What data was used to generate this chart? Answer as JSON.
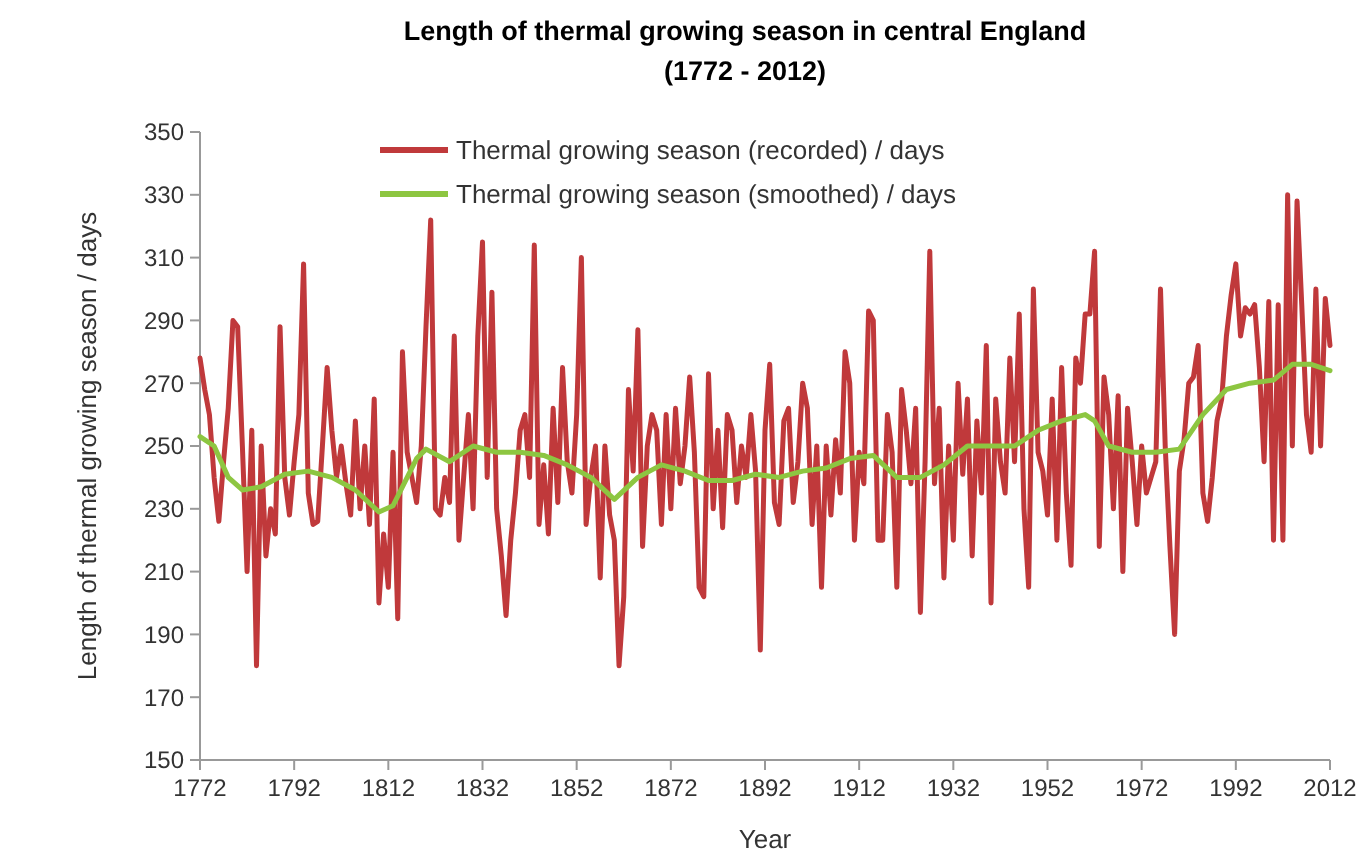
{
  "chart_data": {
    "type": "line",
    "title": "Length of thermal growing season in central England",
    "subtitle": "(1772 - 2012)",
    "xlabel": "Year",
    "ylabel": "Length of thermal growing season / days",
    "x": [
      1772,
      1773,
      1774,
      1775,
      1776,
      1777,
      1778,
      1779,
      1780,
      1781,
      1782,
      1783,
      1784,
      1785,
      1786,
      1787,
      1788,
      1789,
      1790,
      1791,
      1792,
      1793,
      1794,
      1795,
      1796,
      1797,
      1798,
      1799,
      1800,
      1801,
      1802,
      1803,
      1804,
      1805,
      1806,
      1807,
      1808,
      1809,
      1810,
      1811,
      1812,
      1813,
      1814,
      1815,
      1816,
      1817,
      1818,
      1819,
      1820,
      1821,
      1822,
      1823,
      1824,
      1825,
      1826,
      1827,
      1828,
      1829,
      1830,
      1831,
      1832,
      1833,
      1834,
      1835,
      1836,
      1837,
      1838,
      1839,
      1840,
      1841,
      1842,
      1843,
      1844,
      1845,
      1846,
      1847,
      1848,
      1849,
      1850,
      1851,
      1852,
      1853,
      1854,
      1855,
      1856,
      1857,
      1858,
      1859,
      1860,
      1861,
      1862,
      1863,
      1864,
      1865,
      1866,
      1867,
      1868,
      1869,
      1870,
      1871,
      1872,
      1873,
      1874,
      1875,
      1876,
      1877,
      1878,
      1879,
      1880,
      1881,
      1882,
      1883,
      1884,
      1885,
      1886,
      1887,
      1888,
      1889,
      1890,
      1891,
      1892,
      1893,
      1894,
      1895,
      1896,
      1897,
      1898,
      1899,
      1900,
      1901,
      1902,
      1903,
      1904,
      1905,
      1906,
      1907,
      1908,
      1909,
      1910,
      1911,
      1912,
      1913,
      1914,
      1915,
      1916,
      1917,
      1918,
      1919,
      1920,
      1921,
      1922,
      1923,
      1924,
      1925,
      1926,
      1927,
      1928,
      1929,
      1930,
      1931,
      1932,
      1933,
      1934,
      1935,
      1936,
      1937,
      1938,
      1939,
      1940,
      1941,
      1942,
      1943,
      1944,
      1945,
      1946,
      1947,
      1948,
      1949,
      1950,
      1951,
      1952,
      1953,
      1954,
      1955,
      1956,
      1957,
      1958,
      1959,
      1960,
      1961,
      1962,
      1963,
      1964,
      1965,
      1966,
      1967,
      1968,
      1969,
      1970,
      1971,
      1972,
      1973,
      1974,
      1975,
      1976,
      1977,
      1978,
      1979,
      1980,
      1981,
      1982,
      1983,
      1984,
      1985,
      1986,
      1987,
      1988,
      1989,
      1990,
      1991,
      1992,
      1993,
      1994,
      1995,
      1996,
      1997,
      1998,
      1999,
      2000,
      2001,
      2002,
      2003,
      2004,
      2005,
      2006,
      2007,
      2008,
      2009,
      2010,
      2011,
      2012
    ],
    "series": [
      {
        "name": "Thermal growing season (recorded) / days",
        "color": "#c0393b",
        "values": [
          278,
          268,
          260,
          240,
          226,
          245,
          262,
          290,
          288,
          250,
          210,
          255,
          180,
          250,
          215,
          230,
          222,
          288,
          240,
          228,
          245,
          260,
          308,
          235,
          225,
          226,
          250,
          275,
          255,
          240,
          250,
          238,
          228,
          258,
          230,
          250,
          225,
          265,
          200,
          222,
          205,
          248,
          195,
          280,
          248,
          240,
          232,
          250,
          288,
          322,
          230,
          228,
          240,
          232,
          285,
          220,
          240,
          260,
          230,
          285,
          315,
          240,
          299,
          230,
          215,
          196,
          220,
          235,
          255,
          260,
          240,
          314,
          225,
          244,
          222,
          262,
          232,
          275,
          245,
          235,
          260,
          310,
          225,
          240,
          250,
          208,
          250,
          228,
          220,
          180,
          202,
          268,
          242,
          287,
          218,
          250,
          260,
          255,
          225,
          260,
          230,
          262,
          238,
          250,
          272,
          248,
          205,
          202,
          273,
          230,
          255,
          224,
          260,
          255,
          232,
          250,
          240,
          260,
          242,
          185,
          255,
          276,
          232,
          225,
          258,
          262,
          232,
          245,
          270,
          262,
          225,
          250,
          205,
          250,
          228,
          252,
          235,
          280,
          270,
          220,
          248,
          238,
          293,
          290,
          220,
          220,
          260,
          248,
          205,
          268,
          255,
          238,
          262,
          197,
          245,
          312,
          238,
          262,
          208,
          250,
          220,
          270,
          241,
          265,
          215,
          258,
          235,
          282,
          200,
          265,
          245,
          235,
          278,
          245,
          292,
          230,
          205,
          300,
          248,
          242,
          228,
          265,
          220,
          275,
          235,
          212,
          278,
          270,
          292,
          292,
          312,
          218,
          272,
          260,
          230,
          266,
          210,
          262,
          245,
          225,
          250,
          235,
          240,
          245,
          300,
          250,
          218,
          190,
          242,
          252,
          270,
          272,
          282,
          235,
          226,
          240,
          258,
          265,
          285,
          298,
          308,
          285,
          294,
          292,
          295,
          275,
          245,
          296,
          220,
          295,
          220,
          330,
          250,
          328,
          295,
          260,
          248,
          300,
          250,
          297,
          282
        ]
      },
      {
        "name": "Thermal growing season (smoothed) / days",
        "color": "#8dc641",
        "x": [
          1772,
          1775,
          1778,
          1781,
          1785,
          1790,
          1795,
          1800,
          1805,
          1810,
          1813,
          1818,
          1820,
          1825,
          1830,
          1835,
          1840,
          1845,
          1850,
          1855,
          1860,
          1865,
          1870,
          1875,
          1880,
          1885,
          1890,
          1895,
          1900,
          1905,
          1910,
          1915,
          1920,
          1925,
          1930,
          1935,
          1940,
          1945,
          1950,
          1955,
          1960,
          1962,
          1965,
          1970,
          1975,
          1980,
          1985,
          1990,
          1995,
          2000,
          2004,
          2008,
          2012
        ],
        "values": [
          253,
          250,
          240,
          236,
          237,
          241,
          242,
          240,
          236,
          229,
          231,
          246,
          249,
          245,
          250,
          248,
          248,
          247,
          244,
          240,
          233,
          240,
          244,
          242,
          239,
          239,
          241,
          240,
          242,
          243,
          246,
          247,
          240,
          240,
          244,
          250,
          250,
          250,
          255,
          258,
          260,
          258,
          250,
          248,
          248,
          249,
          260,
          268,
          270,
          271,
          276,
          276,
          274
        ]
      }
    ],
    "xlim": [
      1772,
      2012
    ],
    "xticks": [
      1772,
      1792,
      1812,
      1832,
      1852,
      1872,
      1892,
      1912,
      1932,
      1952,
      1972,
      1992,
      2012
    ],
    "ylim": [
      150,
      350
    ],
    "yticks": [
      150,
      170,
      190,
      210,
      230,
      250,
      270,
      290,
      310,
      330,
      350
    ],
    "grid": false,
    "legend": "top",
    "marker": "none",
    "line_style": "solid"
  }
}
